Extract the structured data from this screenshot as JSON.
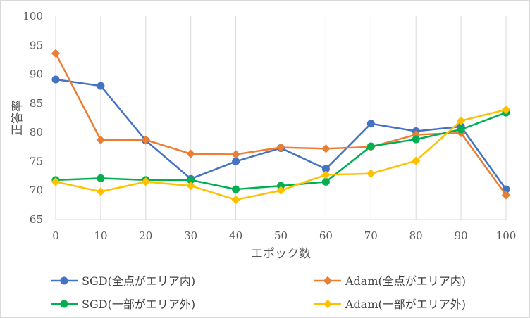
{
  "chart_data": {
    "type": "line",
    "title": "",
    "xlabel": "エポック数",
    "ylabel": "正答率",
    "x": [
      0,
      10,
      20,
      30,
      40,
      50,
      60,
      70,
      80,
      90,
      100
    ],
    "xlim": [
      0,
      100
    ],
    "ylim": [
      65,
      100
    ],
    "xticks": [
      "0",
      "10",
      "20",
      "30",
      "40",
      "50",
      "60",
      "70",
      "80",
      "90",
      "100"
    ],
    "yticks": [
      "65",
      "70",
      "75",
      "80",
      "85",
      "90",
      "95",
      "100"
    ],
    "grid": "vertical",
    "legend_position": "bottom",
    "series": [
      {
        "name": "SGD(全点がエリア内)",
        "color": "#4472C4",
        "marker": "circle",
        "values": [
          89.1,
          88.0,
          78.6,
          72.0,
          75.0,
          77.3,
          73.7,
          81.5,
          80.2,
          81.0,
          70.2
        ]
      },
      {
        "name": "Adam(全点がエリア内)",
        "color": "#ED7D31",
        "marker": "diamond",
        "values": [
          93.6,
          78.7,
          78.7,
          76.3,
          76.2,
          77.4,
          77.2,
          77.5,
          79.6,
          79.9,
          69.2
        ]
      },
      {
        "name": "SGD(一部がエリア外)",
        "color": "#00B050",
        "marker": "circle",
        "values": [
          71.8,
          72.1,
          71.8,
          71.8,
          70.2,
          70.8,
          71.5,
          77.6,
          78.8,
          80.5,
          83.4
        ]
      },
      {
        "name": "Adam(一部がエリア外)",
        "color": "#FFC000",
        "marker": "diamond",
        "values": [
          71.5,
          69.8,
          71.5,
          70.8,
          68.4,
          70.0,
          72.7,
          72.9,
          75.1,
          82.0,
          83.9
        ]
      }
    ]
  }
}
